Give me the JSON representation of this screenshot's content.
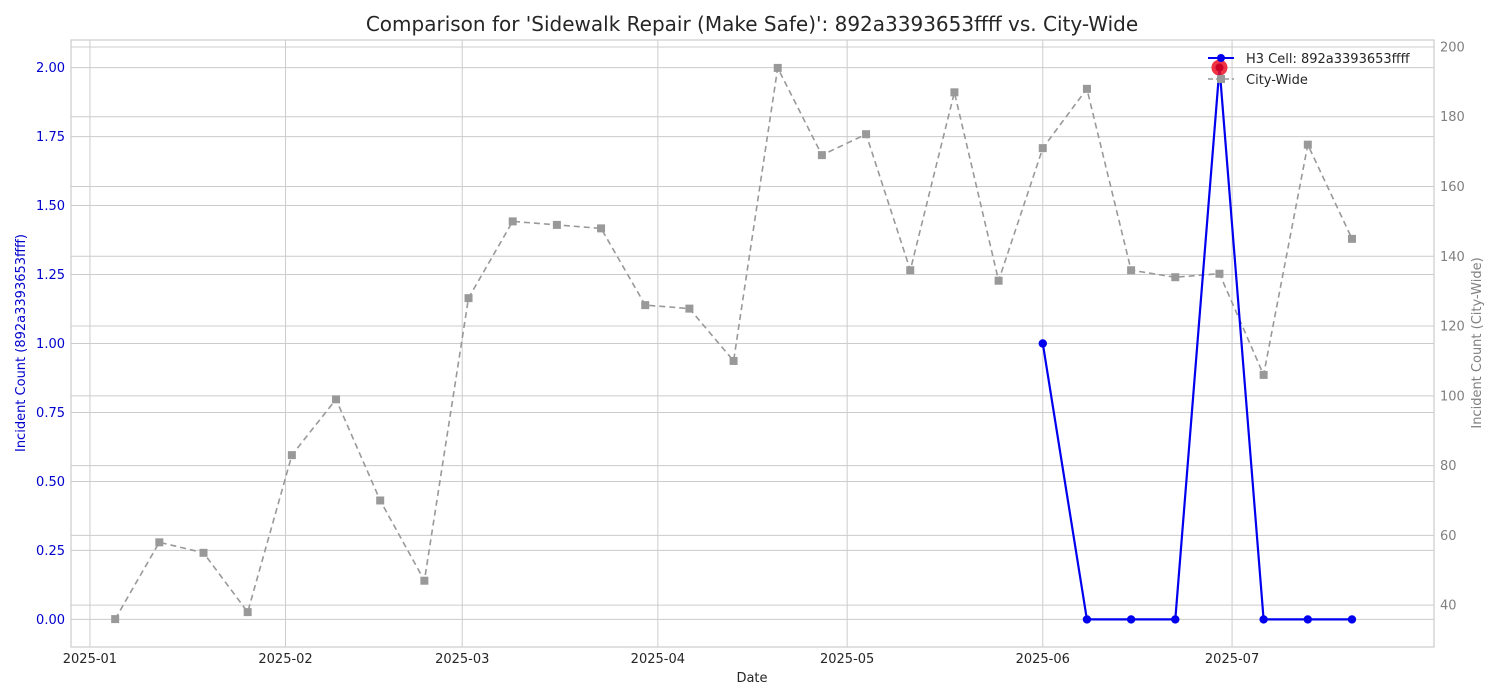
{
  "chart_data": {
    "type": "line",
    "title": "Comparison for 'Sidewalk Repair (Make Safe)': 892a3393653ffff vs. City-Wide",
    "xlabel": "Date",
    "ylabel_left": "Incident Count (892a3393653ffff)",
    "ylabel_right": "Incident Count (City-Wide)",
    "x_ticks": [
      "2025-01",
      "2025-02",
      "2025-03",
      "2025-04",
      "2025-05",
      "2025-06",
      "2025-07"
    ],
    "xlim": [
      "2024-12-29",
      "2025-08-02"
    ],
    "ylim_left": [
      -0.1,
      2.1
    ],
    "ylim_right": [
      28,
      202
    ],
    "y_ticks_left": [
      "0.00",
      "0.25",
      "0.50",
      "0.75",
      "1.00",
      "1.25",
      "1.50",
      "1.75",
      "2.00"
    ],
    "y_ticks_right": [
      "40",
      "60",
      "80",
      "100",
      "120",
      "140",
      "160",
      "180",
      "200"
    ],
    "grid": true,
    "legend_position": "top-right",
    "colors": {
      "local": "#0000ee",
      "city": "#999999",
      "highlight": "#ee1122",
      "left_axis_text": "#0000cc",
      "right_axis_text": "#808080"
    },
    "series": [
      {
        "name": "H3 Cell: 892a3393653ffff",
        "axis": "left",
        "style": "solid-circle",
        "x": [
          "2025-06-01",
          "2025-06-08",
          "2025-06-15",
          "2025-06-22",
          "2025-06-29",
          "2025-07-06",
          "2025-07-13",
          "2025-07-20"
        ],
        "values": [
          1,
          0,
          0,
          0,
          2,
          0,
          0,
          0
        ]
      },
      {
        "name": "City-Wide",
        "axis": "right",
        "style": "dashed-square",
        "x": [
          "2025-01-05",
          "2025-01-12",
          "2025-01-19",
          "2025-01-26",
          "2025-02-02",
          "2025-02-09",
          "2025-02-16",
          "2025-02-23",
          "2025-03-02",
          "2025-03-09",
          "2025-03-16",
          "2025-03-23",
          "2025-03-30",
          "2025-04-06",
          "2025-04-13",
          "2025-04-20",
          "2025-04-27",
          "2025-05-04",
          "2025-05-11",
          "2025-05-18",
          "2025-05-25",
          "2025-06-01",
          "2025-06-08",
          "2025-06-15",
          "2025-06-22",
          "2025-06-29",
          "2025-07-06",
          "2025-07-13",
          "2025-07-20"
        ],
        "values": [
          36,
          58,
          55,
          38,
          83,
          99,
          70,
          47,
          128,
          150,
          149,
          148,
          126,
          125,
          110,
          194,
          169,
          175,
          136,
          187,
          133,
          171,
          188,
          136,
          134,
          135,
          106,
          172,
          145
        ]
      }
    ],
    "highlight_point": {
      "series": "H3 Cell: 892a3393653ffff",
      "x": "2025-06-29",
      "value": 2
    }
  }
}
